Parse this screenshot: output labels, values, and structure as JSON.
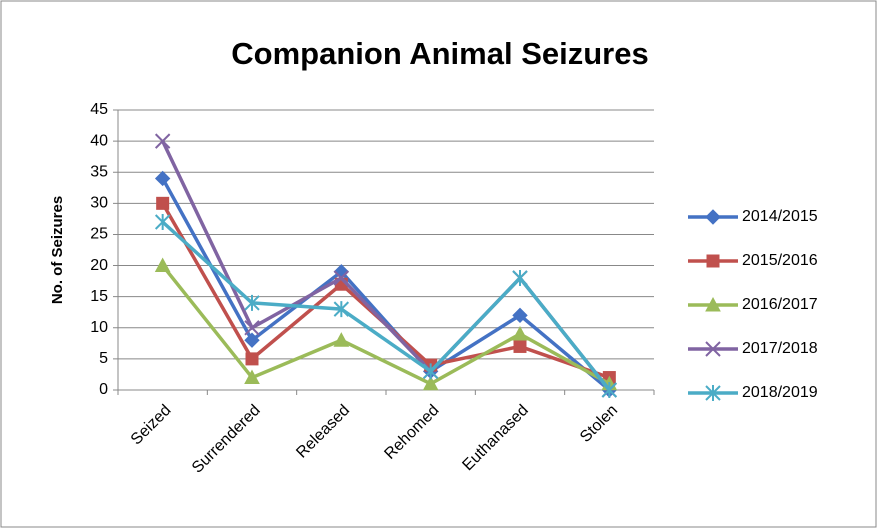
{
  "chart_data": {
    "type": "line",
    "title": "Companion Animal Seizures",
    "y_label": "No. of Seizures",
    "categories": [
      "Seized",
      "Surrendered",
      "Released",
      "Rehomed",
      "Euthanased",
      "Stolen"
    ],
    "series": [
      {
        "name": "2014/2015",
        "color": "#4472c4",
        "marker": "diamond",
        "values": [
          34,
          8,
          19,
          3,
          12,
          0
        ]
      },
      {
        "name": "2015/2016",
        "color": "#c0504d",
        "marker": "square",
        "values": [
          30,
          5,
          17,
          4,
          7,
          2
        ]
      },
      {
        "name": "2016/2017",
        "color": "#9bbb59",
        "marker": "triangle",
        "values": [
          20,
          2,
          8,
          1,
          9,
          1
        ]
      },
      {
        "name": "2017/2018",
        "color": "#8064a2",
        "marker": "x",
        "values": [
          40,
          10,
          18,
          3,
          18,
          0
        ]
      },
      {
        "name": "2018/2019",
        "color": "#4bacc6",
        "marker": "star",
        "values": [
          27,
          14,
          13,
          3,
          18,
          0
        ]
      }
    ],
    "ylim": [
      0,
      45
    ],
    "yticks": [
      0,
      5,
      10,
      15,
      20,
      25,
      30,
      35,
      40,
      45
    ],
    "grid": true,
    "legend": "right"
  }
}
